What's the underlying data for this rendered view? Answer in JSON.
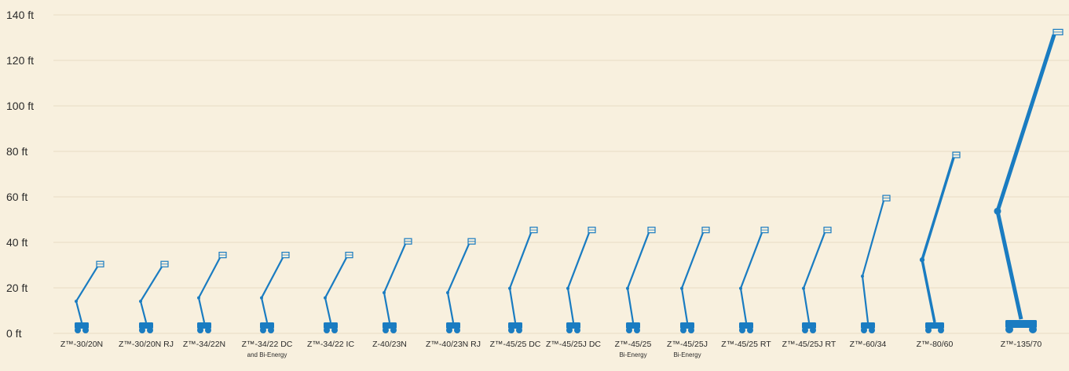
{
  "chart_data": {
    "type": "pictogram-bar",
    "y_unit": "ft",
    "ylim": [
      0,
      140
    ],
    "ytick_values": [
      0,
      20,
      40,
      60,
      80,
      100,
      120,
      140
    ],
    "ytick_labels": [
      "0 ft",
      "20 ft",
      "40 ft",
      "60 ft",
      "80 ft",
      "100 ft",
      "120 ft",
      "140 ft"
    ],
    "grid": true,
    "mark_color": "#1a7cc1",
    "categories": [
      {
        "label": "Z™-30/20N",
        "sublabel": "",
        "value": 32
      },
      {
        "label": "Z™-30/20N RJ",
        "sublabel": "",
        "value": 32
      },
      {
        "label": "Z™-34/22N",
        "sublabel": "",
        "value": 36
      },
      {
        "label": "Z™-34/22 DC",
        "sublabel": "and Bi-Energy",
        "value": 36
      },
      {
        "label": "Z™-34/22 IC",
        "sublabel": "",
        "value": 36
      },
      {
        "label": "Z-40/23N",
        "sublabel": "",
        "value": 42
      },
      {
        "label": "Z™-40/23N RJ",
        "sublabel": "",
        "value": 42
      },
      {
        "label": "Z™-45/25 DC",
        "sublabel": "",
        "value": 47
      },
      {
        "label": "Z™-45/25J DC",
        "sublabel": "",
        "value": 47
      },
      {
        "label": "Z™-45/25",
        "sublabel": "Bi-Energy",
        "value": 47
      },
      {
        "label": "Z™-45/25J",
        "sublabel": "Bi-Energy",
        "value": 47
      },
      {
        "label": "Z™-45/25 RT",
        "sublabel": "",
        "value": 47
      },
      {
        "label": "Z™-45/25J RT",
        "sublabel": "",
        "value": 47
      },
      {
        "label": "Z™-60/34",
        "sublabel": "",
        "value": 61
      },
      {
        "label": "Z™-80/60",
        "sublabel": "",
        "value": 80
      },
      {
        "label": "Z™-135/70",
        "sublabel": "",
        "value": 134
      }
    ]
  }
}
